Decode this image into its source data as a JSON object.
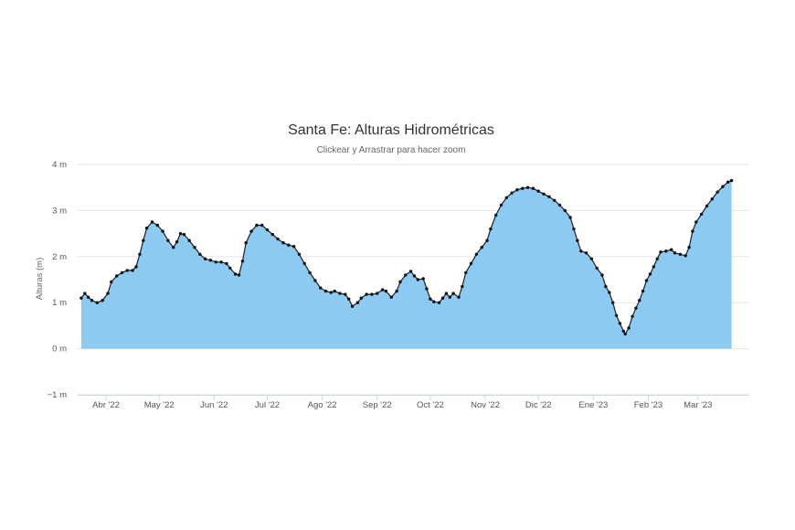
{
  "chart_data": {
    "type": "area",
    "title": "Santa Fe: Alturas Hidrométricas",
    "subtitle": "Clickear y Arrastrar para hacer zoom",
    "ylabel": "Alturas (m)",
    "xlabel": "",
    "ylim": [
      -1,
      4
    ],
    "yticks": [
      {
        "value": 4,
        "label": "4 m"
      },
      {
        "value": 3,
        "label": "3 m"
      },
      {
        "value": 2,
        "label": "2 m"
      },
      {
        "value": 1,
        "label": "1 m"
      },
      {
        "value": 0,
        "label": "0 m"
      },
      {
        "value": -1,
        "label": "−1 m"
      }
    ],
    "xlim": [
      "2022-03-16",
      "2023-03-30"
    ],
    "xticks": [
      {
        "date": "2022-04-01",
        "label": "Abr '22"
      },
      {
        "date": "2022-05-01",
        "label": "May '22"
      },
      {
        "date": "2022-06-01",
        "label": "Jun '22"
      },
      {
        "date": "2022-07-01",
        "label": "Jul '22"
      },
      {
        "date": "2022-08-01",
        "label": "Ago '22"
      },
      {
        "date": "2022-09-01",
        "label": "Sep '22"
      },
      {
        "date": "2022-10-01",
        "label": "Oct '22"
      },
      {
        "date": "2022-11-01",
        "label": "Nov '22"
      },
      {
        "date": "2022-12-01",
        "label": "Dic '22"
      },
      {
        "date": "2023-01-01",
        "label": "Ene '23"
      },
      {
        "date": "2023-02-01",
        "label": "Feb '23"
      },
      {
        "date": "2023-03-01",
        "label": "Mar '23"
      }
    ],
    "grid": true,
    "legend": "none",
    "colors": {
      "fill": "#8ccaf2",
      "line": "#1f1f1f",
      "marker": "#111111",
      "grid": "#e6e6e6"
    },
    "series": [
      {
        "points": [
          [
            "2022-03-18",
            1.1
          ],
          [
            "2022-03-20",
            1.2
          ],
          [
            "2022-03-22",
            1.12
          ],
          [
            "2022-03-24",
            1.05
          ],
          [
            "2022-03-27",
            1.0
          ],
          [
            "2022-03-30",
            1.05
          ],
          [
            "2022-04-02",
            1.2
          ],
          [
            "2022-04-04",
            1.45
          ],
          [
            "2022-04-07",
            1.58
          ],
          [
            "2022-04-10",
            1.65
          ],
          [
            "2022-04-13",
            1.7
          ],
          [
            "2022-04-16",
            1.7
          ],
          [
            "2022-04-18",
            1.78
          ],
          [
            "2022-04-20",
            2.05
          ],
          [
            "2022-04-22",
            2.35
          ],
          [
            "2022-04-24",
            2.62
          ],
          [
            "2022-04-27",
            2.75
          ],
          [
            "2022-04-30",
            2.68
          ],
          [
            "2022-05-03",
            2.55
          ],
          [
            "2022-05-06",
            2.35
          ],
          [
            "2022-05-09",
            2.2
          ],
          [
            "2022-05-11",
            2.32
          ],
          [
            "2022-05-13",
            2.5
          ],
          [
            "2022-05-15",
            2.48
          ],
          [
            "2022-05-18",
            2.35
          ],
          [
            "2022-05-21",
            2.2
          ],
          [
            "2022-05-24",
            2.05
          ],
          [
            "2022-05-27",
            1.95
          ],
          [
            "2022-05-30",
            1.92
          ],
          [
            "2022-06-02",
            1.88
          ],
          [
            "2022-06-05",
            1.88
          ],
          [
            "2022-06-08",
            1.85
          ],
          [
            "2022-06-10",
            1.75
          ],
          [
            "2022-06-13",
            1.62
          ],
          [
            "2022-06-15",
            1.6
          ],
          [
            "2022-06-17",
            1.9
          ],
          [
            "2022-06-19",
            2.3
          ],
          [
            "2022-06-22",
            2.55
          ],
          [
            "2022-06-25",
            2.68
          ],
          [
            "2022-06-28",
            2.68
          ],
          [
            "2022-07-01",
            2.58
          ],
          [
            "2022-07-04",
            2.48
          ],
          [
            "2022-07-07",
            2.38
          ],
          [
            "2022-07-10",
            2.3
          ],
          [
            "2022-07-13",
            2.25
          ],
          [
            "2022-07-16",
            2.22
          ],
          [
            "2022-07-19",
            2.05
          ],
          [
            "2022-07-22",
            1.85
          ],
          [
            "2022-07-25",
            1.65
          ],
          [
            "2022-07-28",
            1.48
          ],
          [
            "2022-07-31",
            1.32
          ],
          [
            "2022-08-03",
            1.25
          ],
          [
            "2022-08-06",
            1.22
          ],
          [
            "2022-08-08",
            1.25
          ],
          [
            "2022-08-11",
            1.2
          ],
          [
            "2022-08-14",
            1.18
          ],
          [
            "2022-08-16",
            1.08
          ],
          [
            "2022-08-18",
            0.92
          ],
          [
            "2022-08-21",
            1.0
          ],
          [
            "2022-08-23",
            1.1
          ],
          [
            "2022-08-26",
            1.18
          ],
          [
            "2022-08-29",
            1.18
          ],
          [
            "2022-09-01",
            1.2
          ],
          [
            "2022-09-04",
            1.28
          ],
          [
            "2022-09-06",
            1.25
          ],
          [
            "2022-09-09",
            1.12
          ],
          [
            "2022-09-12",
            1.25
          ],
          [
            "2022-09-14",
            1.45
          ],
          [
            "2022-09-17",
            1.6
          ],
          [
            "2022-09-20",
            1.68
          ],
          [
            "2022-09-22",
            1.58
          ],
          [
            "2022-09-24",
            1.5
          ],
          [
            "2022-09-27",
            1.52
          ],
          [
            "2022-09-29",
            1.3
          ],
          [
            "2022-10-01",
            1.08
          ],
          [
            "2022-10-03",
            1.02
          ],
          [
            "2022-10-06",
            1.0
          ],
          [
            "2022-10-08",
            1.1
          ],
          [
            "2022-10-10",
            1.2
          ],
          [
            "2022-10-12",
            1.12
          ],
          [
            "2022-10-14",
            1.2
          ],
          [
            "2022-10-17",
            1.12
          ],
          [
            "2022-10-19",
            1.35
          ],
          [
            "2022-10-21",
            1.65
          ],
          [
            "2022-10-24",
            1.85
          ],
          [
            "2022-10-27",
            2.05
          ],
          [
            "2022-10-30",
            2.2
          ],
          [
            "2022-11-02",
            2.35
          ],
          [
            "2022-11-04",
            2.6
          ],
          [
            "2022-11-07",
            2.9
          ],
          [
            "2022-11-10",
            3.12
          ],
          [
            "2022-11-13",
            3.28
          ],
          [
            "2022-11-16",
            3.38
          ],
          [
            "2022-11-19",
            3.45
          ],
          [
            "2022-11-22",
            3.48
          ],
          [
            "2022-11-25",
            3.5
          ],
          [
            "2022-11-28",
            3.48
          ],
          [
            "2022-12-01",
            3.42
          ],
          [
            "2022-12-04",
            3.36
          ],
          [
            "2022-12-07",
            3.3
          ],
          [
            "2022-12-10",
            3.22
          ],
          [
            "2022-12-13",
            3.12
          ],
          [
            "2022-12-16",
            3.0
          ],
          [
            "2022-12-19",
            2.85
          ],
          [
            "2022-12-21",
            2.6
          ],
          [
            "2022-12-23",
            2.35
          ],
          [
            "2022-12-25",
            2.12
          ],
          [
            "2022-12-28",
            2.08
          ],
          [
            "2022-12-31",
            1.95
          ],
          [
            "2023-01-03",
            1.75
          ],
          [
            "2023-01-06",
            1.6
          ],
          [
            "2023-01-08",
            1.35
          ],
          [
            "2023-01-10",
            1.22
          ],
          [
            "2023-01-12",
            1.0
          ],
          [
            "2023-01-14",
            0.72
          ],
          [
            "2023-01-16",
            0.55
          ],
          [
            "2023-01-18",
            0.38
          ],
          [
            "2023-01-19",
            0.32
          ],
          [
            "2023-01-21",
            0.45
          ],
          [
            "2023-01-23",
            0.7
          ],
          [
            "2023-01-25",
            0.88
          ],
          [
            "2023-01-27",
            1.05
          ],
          [
            "2023-01-29",
            1.25
          ],
          [
            "2023-01-31",
            1.48
          ],
          [
            "2023-02-02",
            1.62
          ],
          [
            "2023-02-04",
            1.78
          ],
          [
            "2023-02-06",
            1.95
          ],
          [
            "2023-02-08",
            2.1
          ],
          [
            "2023-02-11",
            2.12
          ],
          [
            "2023-02-14",
            2.15
          ],
          [
            "2023-02-16",
            2.08
          ],
          [
            "2023-02-19",
            2.05
          ],
          [
            "2023-02-22",
            2.02
          ],
          [
            "2023-02-24",
            2.2
          ],
          [
            "2023-02-26",
            2.55
          ],
          [
            "2023-02-28",
            2.75
          ],
          [
            "2023-03-03",
            2.92
          ],
          [
            "2023-03-06",
            3.1
          ],
          [
            "2023-03-09",
            3.25
          ],
          [
            "2023-03-12",
            3.4
          ],
          [
            "2023-03-15",
            3.52
          ],
          [
            "2023-03-18",
            3.62
          ],
          [
            "2023-03-20",
            3.65
          ]
        ]
      }
    ]
  }
}
